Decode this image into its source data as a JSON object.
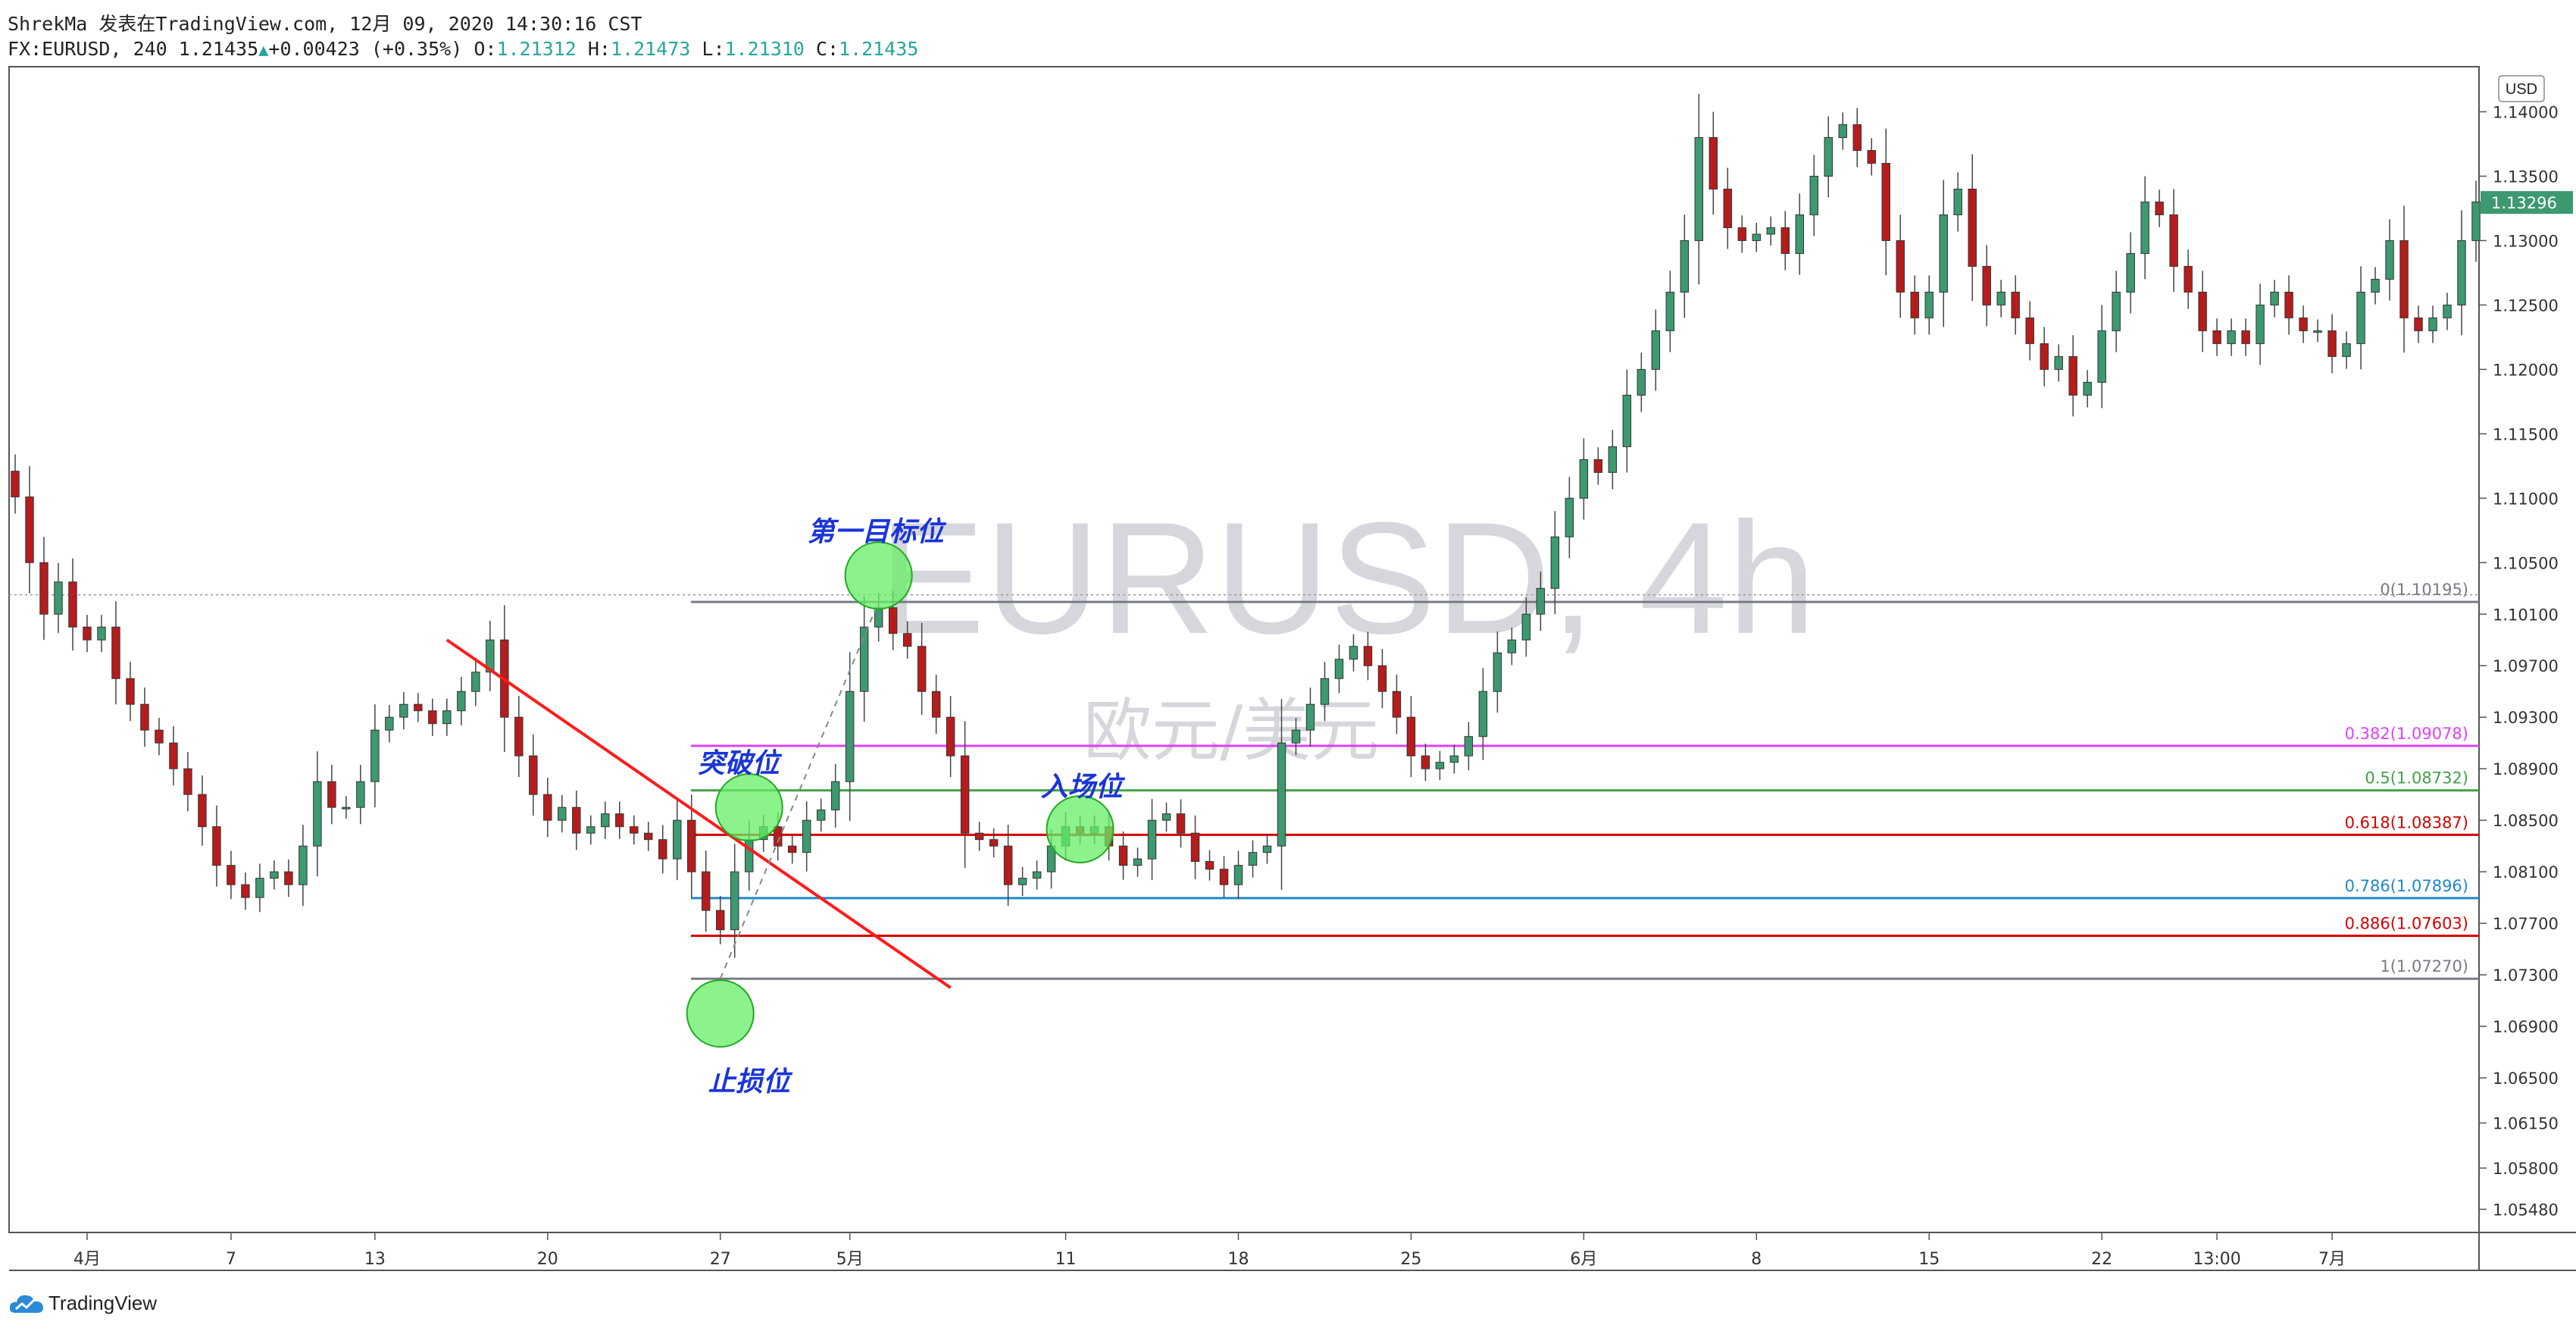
{
  "header": {
    "line1": "ShrekMa 发表在TradingView.com, 12月 09, 2020 14:30:16 CST",
    "symbol": "FX:EURUSD, 240",
    "last": "1.21435",
    "change": "+0.00423 (+0.35%)",
    "o_label": "O:",
    "o_value": "1.21312",
    "h_label": "H:",
    "h_value": "1.21473",
    "l_label": "L:",
    "l_value": "1.21310",
    "c_label": "C:",
    "c_value": "1.21435"
  },
  "footer": {
    "logo_text": "TradingView"
  },
  "colors": {
    "up": "#26a69a",
    "down": "#ef5350",
    "up_body": "#3d9970",
    "down_body": "#b71c1c"
  },
  "chart_data": {
    "type": "candlestick",
    "watermark": "EURUSD, 4h",
    "watermark_sub": "欧元/美元",
    "currency_badge": "USD",
    "current_price": "1.13296",
    "ylim": [
      1.053,
      1.1435
    ],
    "y_ticks": [
      "1.14000",
      "1.13500",
      "1.13000",
      "1.12500",
      "1.12000",
      "1.11500",
      "1.11000",
      "1.10500",
      "1.10100",
      "1.09700",
      "1.09300",
      "1.08900",
      "1.08500",
      "1.08100",
      "1.07700",
      "1.07300",
      "1.06900",
      "1.06500",
      "1.06150",
      "1.05800",
      "1.05480"
    ],
    "x_ticks": [
      {
        "label": "4月",
        "idx": 5
      },
      {
        "label": "7",
        "idx": 15
      },
      {
        "label": "13",
        "idx": 25
      },
      {
        "label": "20",
        "idx": 37
      },
      {
        "label": "27",
        "idx": 49
      },
      {
        "label": "5月",
        "idx": 58
      },
      {
        "label": "11",
        "idx": 73
      },
      {
        "label": "18",
        "idx": 85
      },
      {
        "label": "25",
        "idx": 97
      },
      {
        "label": "6月",
        "idx": 109
      },
      {
        "label": "8",
        "idx": 121
      },
      {
        "label": "15",
        "idx": 133
      },
      {
        "label": "22",
        "idx": 145
      },
      {
        "label": "13:00",
        "idx": 153
      },
      {
        "label": "7月",
        "idx": 161
      }
    ],
    "close": [
      1.1101,
      1.105,
      1.101,
      1.1035,
      1.1,
      1.099,
      1.1,
      1.096,
      1.094,
      1.092,
      1.091,
      1.089,
      1.087,
      1.0845,
      1.0815,
      1.08,
      1.079,
      1.0805,
      1.081,
      1.08,
      1.083,
      1.088,
      1.086,
      1.086,
      1.088,
      1.092,
      1.093,
      1.094,
      1.0935,
      1.0925,
      1.0935,
      1.095,
      1.0965,
      1.099,
      1.093,
      1.09,
      1.087,
      1.085,
      1.086,
      1.084,
      1.0845,
      1.0855,
      1.0845,
      1.084,
      1.0835,
      1.082,
      1.085,
      1.081,
      1.078,
      1.0765,
      1.081,
      1.0835,
      1.0845,
      1.083,
      1.0825,
      1.085,
      1.0858,
      1.088,
      1.095,
      1.1,
      1.1015,
      1.0995,
      1.0985,
      1.095,
      1.093,
      1.09,
      1.084,
      1.0835,
      1.083,
      1.08,
      1.0805,
      1.081,
      1.083,
      1.0845,
      1.084,
      1.0845,
      1.083,
      1.0815,
      1.082,
      1.085,
      1.0855,
      1.084,
      1.0818,
      1.0812,
      1.08,
      1.0815,
      1.0825,
      1.083,
      1.091,
      1.092,
      1.094,
      1.096,
      1.0975,
      1.0985,
      1.097,
      1.095,
      1.093,
      1.09,
      1.089,
      1.0895,
      1.09,
      1.0915,
      1.095,
      1.098,
      1.099,
      1.101,
      1.103,
      1.107,
      1.11,
      1.113,
      1.112,
      1.114,
      1.118,
      1.12,
      1.123,
      1.126,
      1.13,
      1.138,
      1.134,
      1.131,
      1.13,
      1.1305,
      1.131,
      1.129,
      1.132,
      1.135,
      1.138,
      1.139,
      1.137,
      1.136,
      1.13,
      1.126,
      1.124,
      1.126,
      1.132,
      1.134,
      1.128,
      1.125,
      1.126,
      1.124,
      1.122,
      1.12,
      1.121,
      1.118,
      1.119,
      1.123,
      1.126,
      1.129,
      1.133,
      1.132,
      1.128,
      1.126,
      1.123,
      1.122,
      1.123,
      1.122,
      1.125,
      1.126,
      1.124,
      1.123,
      1.123,
      1.121,
      1.122,
      1.126,
      1.127,
      1.13,
      1.124,
      1.123,
      1.124,
      1.125,
      1.13,
      1.133
    ],
    "fib_levels": [
      {
        "label": "0(1.10195)",
        "price": 1.10195,
        "color": "#787b86"
      },
      {
        "label": "0.382(1.09078)",
        "price": 1.09078,
        "color": "#e040fb"
      },
      {
        "label": "0.5(1.08732)",
        "price": 1.08732,
        "color": "#43a047"
      },
      {
        "label": "0.618(1.08387)",
        "price": 1.08387,
        "color": "#d50000"
      },
      {
        "label": "0.786(1.07896)",
        "price": 1.07896,
        "color": "#1e88c9"
      },
      {
        "label": "0.886(1.07603)",
        "price": 1.07603,
        "color": "#d50000"
      },
      {
        "label": "1(1.07270)",
        "price": 1.0727,
        "color": "#787b86"
      }
    ],
    "annotations": [
      {
        "text": "第一目标位",
        "idx": 60,
        "price": 1.104,
        "circle": true
      },
      {
        "text": "突破位",
        "idx": 51,
        "price": 1.086,
        "circle": true
      },
      {
        "text": "入场位",
        "idx": 74,
        "price": 1.0843,
        "circle": true
      },
      {
        "text": "止损位",
        "idx": 49,
        "price": 1.07,
        "circle": true
      }
    ],
    "trendline": {
      "from": {
        "idx": 30,
        "price": 1.099
      },
      "to": {
        "idx": 65,
        "price": 1.072
      },
      "color": "#ff1a1a"
    },
    "dotted_reference": {
      "price": 1.1025
    }
  }
}
